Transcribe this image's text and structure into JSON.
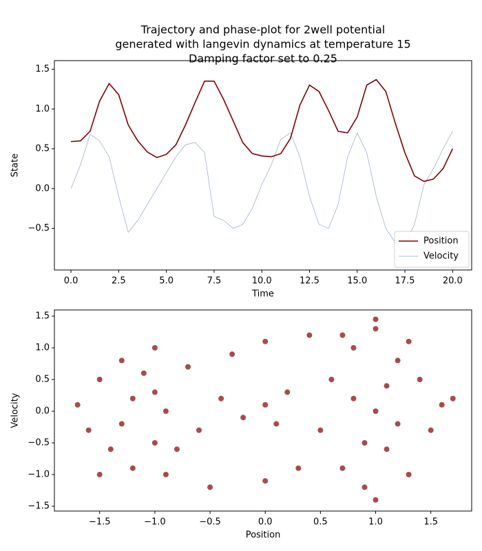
{
  "chart_data": [
    {
      "type": "line",
      "title": [
        "Trajectory and phase-plot for 2well potential",
        "generated with langevin dynamics at temperature 15",
        "Damping factor set to 0.25"
      ],
      "x_label": "Time",
      "y_label": "State",
      "x": [
        0,
        0.5,
        1,
        1.5,
        2,
        2.5,
        3,
        3.5,
        4,
        4.5,
        5,
        5.5,
        6,
        6.5,
        7,
        7.5,
        8,
        8.5,
        9,
        9.5,
        10,
        10.5,
        11,
        11.5,
        12,
        12.5,
        13,
        13.5,
        14,
        14.5,
        15,
        15.5,
        16,
        16.5,
        17,
        17.5,
        18,
        18.5,
        19,
        19.5,
        20
      ],
      "series": [
        {
          "name": "Position",
          "color": "#800000",
          "values": [
            0.59,
            0.6,
            0.72,
            1.1,
            1.32,
            1.18,
            0.8,
            0.6,
            0.46,
            0.39,
            0.43,
            0.55,
            0.8,
            1.08,
            1.35,
            1.35,
            1.12,
            0.85,
            0.58,
            0.44,
            0.41,
            0.4,
            0.44,
            0.63,
            1.05,
            1.3,
            1.22,
            0.98,
            0.72,
            0.7,
            0.9,
            1.3,
            1.37,
            1.22,
            0.82,
            0.45,
            0.16,
            0.09,
            0.12,
            0.25,
            0.5
          ]
        },
        {
          "name": "Velocity",
          "color": "#8fa8c8",
          "values": [
            0,
            0.3,
            0.68,
            0.6,
            0.4,
            -0.1,
            -0.55,
            -0.4,
            -0.2,
            0,
            0.2,
            0.4,
            0.55,
            0.58,
            0.45,
            -0.35,
            -0.4,
            -0.5,
            -0.45,
            -0.25,
            0.05,
            0.3,
            0.62,
            0.7,
            0.4,
            -0.1,
            -0.45,
            -0.5,
            -0.2,
            0.4,
            0.7,
            0.45,
            -0.1,
            -0.5,
            -0.68,
            -0.7,
            -0.45,
            0.05,
            0.25,
            0.5,
            0.72
          ]
        }
      ],
      "xlim": [
        -0.87,
        21.0
      ],
      "ylim": [
        -1.023,
        1.608
      ],
      "xticks": [
        {
          "value": 0,
          "label": "0.0"
        },
        {
          "value": 2.5,
          "label": "2.5"
        },
        {
          "value": 5,
          "label": "5.0"
        },
        {
          "value": 7.5,
          "label": "7.5"
        },
        {
          "value": 10,
          "label": "10.0"
        },
        {
          "value": 12.5,
          "label": "12.5"
        },
        {
          "value": 15,
          "label": "15.0"
        },
        {
          "value": 17.5,
          "label": "17.5"
        },
        {
          "value": 20,
          "label": "20.0"
        }
      ],
      "yticks": [
        {
          "value": -0.5,
          "label": "−0.5"
        },
        {
          "value": 0,
          "label": "0.0"
        },
        {
          "value": 0.5,
          "label": "0.5"
        },
        {
          "value": 1,
          "label": "1.0"
        },
        {
          "value": 1.5,
          "label": "1.5"
        }
      ],
      "legend": "lower right"
    },
    {
      "type": "scatter",
      "x_label": "Position",
      "y_label": "Velocity",
      "color": "#800000",
      "x": [
        -1.7,
        -1.6,
        -1.5,
        -1.4,
        -1.3,
        -1.2,
        -1.1,
        -1.0,
        -1.0,
        -0.9,
        -0.8,
        -0.7,
        -0.6,
        -1.2,
        -1.3,
        -0.9,
        -1.0,
        -1.5,
        -0.4,
        -0.2,
        0,
        0.1,
        0.2,
        -0.3,
        0.3,
        0,
        0,
        -0.5,
        0.4,
        0.5,
        0.6,
        0.7,
        0.8,
        0.9,
        1.0,
        1.0,
        1.1,
        1.2,
        1.3,
        1.4,
        1.5,
        1.6,
        1.7,
        0.8,
        1.2,
        0.9,
        1.1,
        1.0,
        1.0,
        0.7,
        1.3
      ],
      "y": [
        0.1,
        -0.3,
        0.5,
        -0.6,
        0.8,
        -0.9,
        0.6,
        -0.5,
        0.3,
        0,
        -0.6,
        0.7,
        -0.3,
        0.2,
        -0.2,
        -1.0,
        1.0,
        -1.0,
        0.2,
        -0.1,
        0.1,
        -0.2,
        0.3,
        0.9,
        -0.9,
        1.1,
        -1.1,
        -1.2,
        1.2,
        -0.3,
        0.5,
        -0.9,
        1.0,
        -1.2,
        1.3,
        0,
        -0.6,
        0.8,
        -1.0,
        0.5,
        -0.3,
        0.1,
        0.2,
        0.2,
        -0.2,
        -0.5,
        0.4,
        -1.4,
        1.45,
        1.2,
        1.1
      ],
      "xlim": [
        -1.91,
        1.87
      ],
      "ylim": [
        -1.576,
        1.598
      ],
      "xticks": [
        {
          "value": -1.5,
          "label": "−1.5"
        },
        {
          "value": -1,
          "label": "−1.0"
        },
        {
          "value": -0.5,
          "label": "−0.5"
        },
        {
          "value": 0,
          "label": "0.0"
        },
        {
          "value": 0.5,
          "label": "0.5"
        },
        {
          "value": 1,
          "label": "1.0"
        },
        {
          "value": 1.5,
          "label": "1.5"
        }
      ],
      "yticks": [
        {
          "value": -1.5,
          "label": "−1.5"
        },
        {
          "value": -1,
          "label": "−1.0"
        },
        {
          "value": -0.5,
          "label": "−0.5"
        },
        {
          "value": 0,
          "label": "0.0"
        },
        {
          "value": 0.5,
          "label": "0.5"
        },
        {
          "value": 1,
          "label": "1.0"
        },
        {
          "value": 1.5,
          "label": "1.5"
        }
      ]
    }
  ]
}
